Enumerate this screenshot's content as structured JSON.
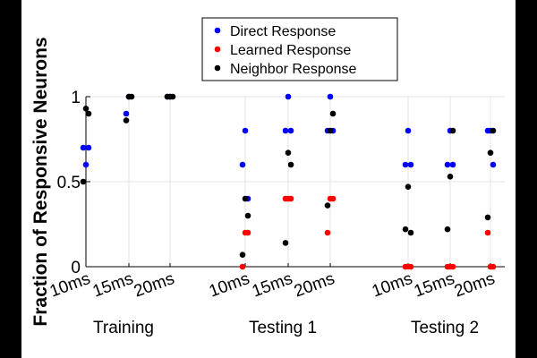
{
  "chart_data": {
    "type": "scatter",
    "ylabel": "Fraction of Responsive Neurons",
    "ylim": [
      0,
      1
    ],
    "yticks": [
      0,
      0.5,
      1
    ],
    "ytick_labels": [
      "0",
      "0.5",
      "1"
    ],
    "legend": {
      "placement": "top-center"
    },
    "groups": [
      {
        "label": "Training",
        "conditions": [
          "10ms",
          "15ms",
          "20ms"
        ]
      },
      {
        "label": "Testing 1",
        "conditions": [
          "10ms",
          "15ms",
          "20ms"
        ]
      },
      {
        "label": "Testing 2",
        "conditions": [
          "10ms",
          "15ms",
          "20ms"
        ]
      }
    ],
    "series": [
      {
        "name": "Direct Response",
        "color": "#0000ff",
        "points": [
          {
            "g": 0,
            "c": 0,
            "y": 0.7
          },
          {
            "g": 0,
            "c": 0,
            "y": 0.6
          },
          {
            "g": 0,
            "c": 0,
            "y": 0.7
          },
          {
            "g": 0,
            "c": 1,
            "y": 0.9
          },
          {
            "g": 0,
            "c": 1,
            "y": 1.0
          },
          {
            "g": 0,
            "c": 2,
            "y": 1.0
          },
          {
            "g": 0,
            "c": 2,
            "y": 1.0
          },
          {
            "g": 1,
            "c": 0,
            "y": 0.6
          },
          {
            "g": 1,
            "c": 0,
            "y": 0.8
          },
          {
            "g": 1,
            "c": 0,
            "y": 0.4
          },
          {
            "g": 1,
            "c": 1,
            "y": 0.8
          },
          {
            "g": 1,
            "c": 1,
            "y": 1.0
          },
          {
            "g": 1,
            "c": 1,
            "y": 0.8
          },
          {
            "g": 1,
            "c": 2,
            "y": 0.8
          },
          {
            "g": 1,
            "c": 2,
            "y": 1.0
          },
          {
            "g": 1,
            "c": 2,
            "y": 0.8
          },
          {
            "g": 2,
            "c": 0,
            "y": 0.6
          },
          {
            "g": 2,
            "c": 0,
            "y": 0.8
          },
          {
            "g": 2,
            "c": 0,
            "y": 0.6
          },
          {
            "g": 2,
            "c": 1,
            "y": 0.6
          },
          {
            "g": 2,
            "c": 1,
            "y": 0.8
          },
          {
            "g": 2,
            "c": 1,
            "y": 0.6
          },
          {
            "g": 2,
            "c": 2,
            "y": 0.8
          },
          {
            "g": 2,
            "c": 2,
            "y": 0.8
          },
          {
            "g": 2,
            "c": 2,
            "y": 0.6
          }
        ]
      },
      {
        "name": "Learned Response",
        "color": "#ff0000",
        "points": [
          {
            "g": 1,
            "c": 0,
            "y": 0.0
          },
          {
            "g": 1,
            "c": 0,
            "y": 0.2
          },
          {
            "g": 1,
            "c": 0,
            "y": 0.2
          },
          {
            "g": 1,
            "c": 1,
            "y": 0.4
          },
          {
            "g": 1,
            "c": 1,
            "y": 0.4
          },
          {
            "g": 1,
            "c": 1,
            "y": 0.4
          },
          {
            "g": 1,
            "c": 2,
            "y": 0.2
          },
          {
            "g": 1,
            "c": 2,
            "y": 0.4
          },
          {
            "g": 1,
            "c": 2,
            "y": 0.4
          },
          {
            "g": 2,
            "c": 0,
            "y": 0.0
          },
          {
            "g": 2,
            "c": 0,
            "y": 0.0
          },
          {
            "g": 2,
            "c": 0,
            "y": 0.0
          },
          {
            "g": 2,
            "c": 1,
            "y": 0.0
          },
          {
            "g": 2,
            "c": 1,
            "y": 0.0
          },
          {
            "g": 2,
            "c": 1,
            "y": 0.0
          },
          {
            "g": 2,
            "c": 2,
            "y": 0.2
          },
          {
            "g": 2,
            "c": 2,
            "y": 0.0
          },
          {
            "g": 2,
            "c": 2,
            "y": 0.0
          }
        ]
      },
      {
        "name": "Neighbor Response",
        "color": "#000000",
        "points": [
          {
            "g": 0,
            "c": 0,
            "y": 0.5
          },
          {
            "g": 0,
            "c": 0,
            "y": 0.93
          },
          {
            "g": 0,
            "c": 0,
            "y": 0.9
          },
          {
            "g": 0,
            "c": 1,
            "y": 0.86
          },
          {
            "g": 0,
            "c": 1,
            "y": 1.0
          },
          {
            "g": 0,
            "c": 1,
            "y": 1.0
          },
          {
            "g": 0,
            "c": 2,
            "y": 1.0
          },
          {
            "g": 0,
            "c": 2,
            "y": 1.0
          },
          {
            "g": 0,
            "c": 2,
            "y": 1.0
          },
          {
            "g": 1,
            "c": 0,
            "y": 0.07
          },
          {
            "g": 1,
            "c": 0,
            "y": 0.4
          },
          {
            "g": 1,
            "c": 0,
            "y": 0.3
          },
          {
            "g": 1,
            "c": 1,
            "y": 0.14
          },
          {
            "g": 1,
            "c": 1,
            "y": 0.67
          },
          {
            "g": 1,
            "c": 1,
            "y": 0.6
          },
          {
            "g": 1,
            "c": 2,
            "y": 0.36
          },
          {
            "g": 1,
            "c": 2,
            "y": 0.8
          },
          {
            "g": 1,
            "c": 2,
            "y": 0.9
          },
          {
            "g": 2,
            "c": 0,
            "y": 0.22
          },
          {
            "g": 2,
            "c": 0,
            "y": 0.47
          },
          {
            "g": 2,
            "c": 0,
            "y": 0.2
          },
          {
            "g": 2,
            "c": 1,
            "y": 0.22
          },
          {
            "g": 2,
            "c": 1,
            "y": 0.53
          },
          {
            "g": 2,
            "c": 1,
            "y": 0.8
          },
          {
            "g": 2,
            "c": 2,
            "y": 0.29
          },
          {
            "g": 2,
            "c": 2,
            "y": 0.67
          },
          {
            "g": 2,
            "c": 2,
            "y": 0.8
          }
        ]
      }
    ]
  }
}
